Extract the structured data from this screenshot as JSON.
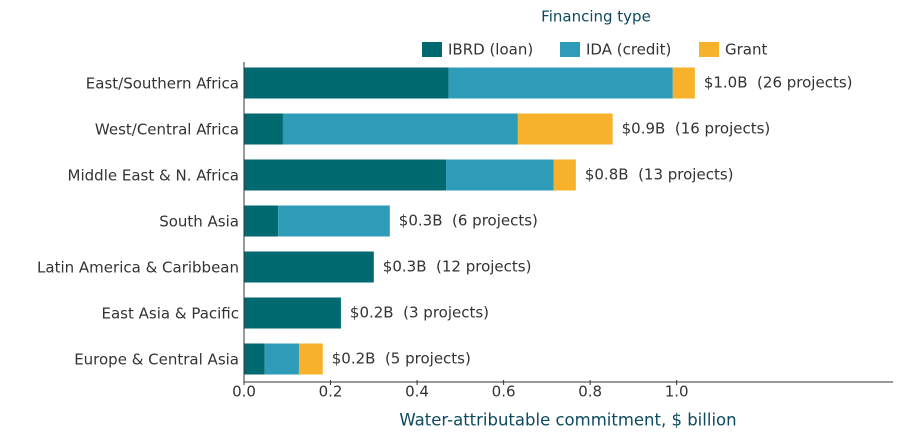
{
  "chart_data": {
    "type": "stacked-barh",
    "legend_title": "Financing type",
    "x_label": "Water-attributable commitment, $ billion",
    "categories": [
      "East/Southern Africa",
      "West/Central Africa",
      "Middle East & N. Africa",
      "South Asia",
      "Latin America & Caribbean",
      "East Asia & Pacific",
      "Europe & Central Asia"
    ],
    "series": [
      {
        "name": "IBRD (loan)",
        "color": "#006a70",
        "values": [
          0.473,
          0.09,
          0.467,
          0.079,
          0.3,
          0.224,
          0.048
        ]
      },
      {
        "name": "IDA (credit)",
        "color": "#2e9bb8",
        "values": [
          0.518,
          0.543,
          0.249,
          0.258,
          0,
          0,
          0.079
        ]
      },
      {
        "name": "Grant",
        "color": "#f7b12b",
        "values": [
          0.051,
          0.219,
          0.051,
          0,
          0,
          0,
          0.055
        ]
      }
    ],
    "total_labels": [
      "$1.0B  (26 projects)",
      "$0.9B  (16 projects)",
      "$0.8B  (13 projects)",
      "$0.3B  (6 projects)",
      "$0.3B  (12 projects)",
      "$0.2B  (3 projects)",
      "$0.2B  (5 projects)"
    ],
    "xlim": [
      0,
      1.5
    ],
    "xticks": [
      {
        "value": 0,
        "label": "0.0"
      },
      0.2,
      0.4,
      0.6,
      0.8,
      {
        "value": 1,
        "label": "1.0"
      }
    ],
    "legend": "top"
  }
}
